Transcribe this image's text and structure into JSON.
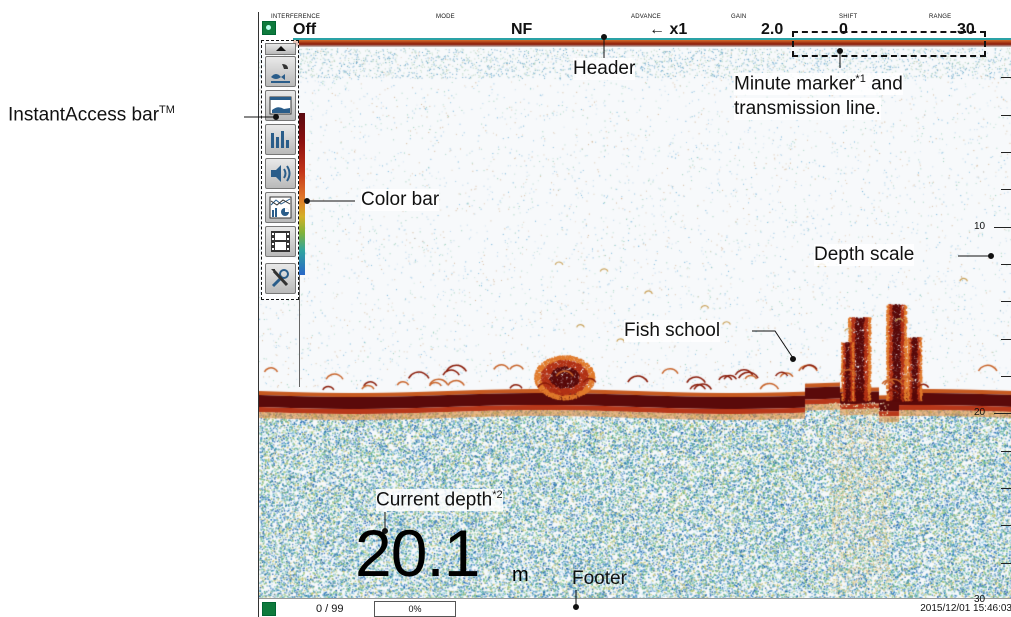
{
  "header": {
    "interference": {
      "label": "INTERFERENCE",
      "value": "Off"
    },
    "mode": {
      "label": "MODE",
      "value": "NF"
    },
    "advance": {
      "label": "ADVANCE",
      "value": "← x1"
    },
    "gain": {
      "label": "GAIN",
      "value": "2.0"
    },
    "shift": {
      "label": "SHIFT",
      "value": "0"
    },
    "range": {
      "label": "RANGE",
      "value": "30"
    }
  },
  "footer": {
    "count": "0 / 99",
    "progress_label": "0%",
    "progress_fraction": 0.0,
    "datetime": "2015/12/01 15:46:03"
  },
  "depth_scale": {
    "labels": [
      "10",
      "20",
      "30"
    ],
    "range_m": 30
  },
  "current_depth": {
    "value": "20.1",
    "unit": "m"
  },
  "instant_access": {
    "icons": [
      "fish-alarm-icon",
      "echo-mode-icon",
      "bar-chart-icon",
      "speaker-icon",
      "histogram-pie-icon",
      "film-strip-icon",
      "tools-icon"
    ]
  },
  "annotations": {
    "instant_access_bar": "InstantAccess bar",
    "instant_access_tm": "TM",
    "header": "Header",
    "minute_marker_line1": "Minute marker",
    "minute_marker_sup": "*1",
    "minute_marker_line1_tail": " and",
    "minute_marker_line2": "transmission line.",
    "color_bar": "Color bar",
    "depth_scale": "Depth scale",
    "fish_school": "Fish school",
    "current_depth": "Current depth",
    "current_depth_sup": "*2",
    "footer": "Footer"
  },
  "colors": {
    "bottom": "#5a0a0a",
    "accent_teal": "#2aa2a6",
    "icon_green": "#0e7a3c"
  }
}
